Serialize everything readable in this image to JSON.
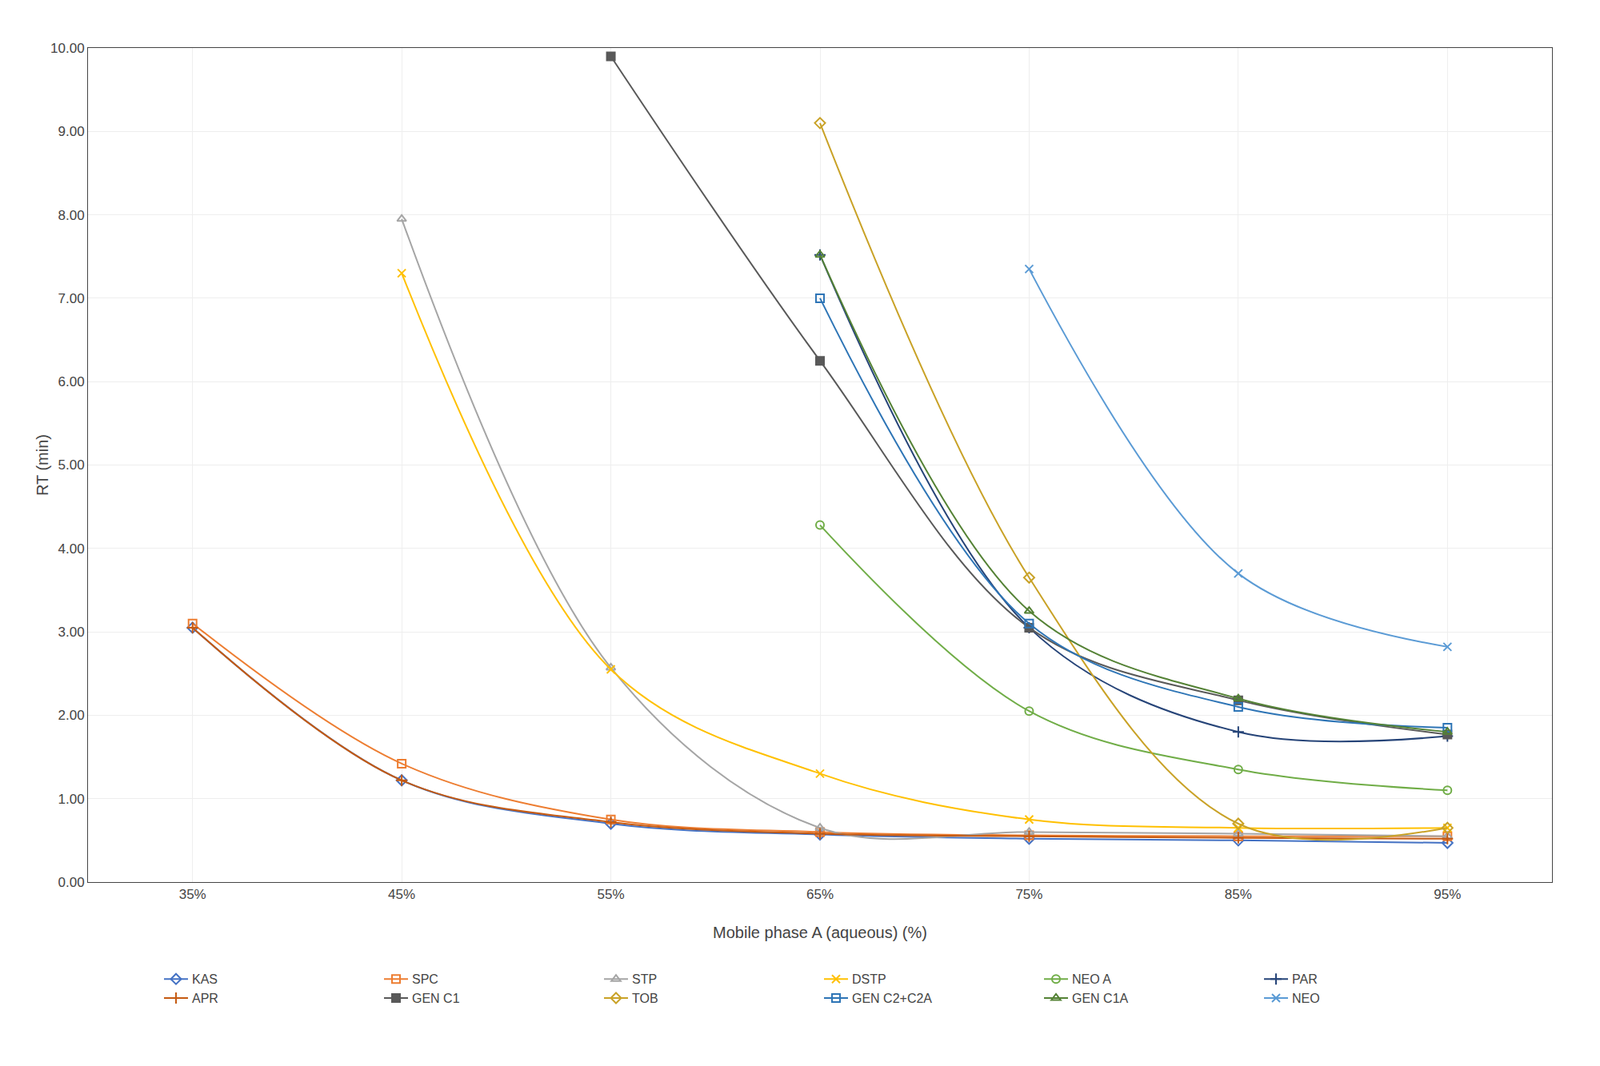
{
  "chart_data": {
    "type": "line",
    "xlabel": "Mobile phase A (aqueous) (%)",
    "ylabel": "RT (min)",
    "xlim": [
      30,
      100
    ],
    "xticks": [
      {
        "value": 35,
        "label": "35%"
      },
      {
        "value": 45,
        "label": "45%"
      },
      {
        "value": 55,
        "label": "55%"
      },
      {
        "value": 65,
        "label": "65%"
      },
      {
        "value": 75,
        "label": "75%"
      },
      {
        "value": 85,
        "label": "85%"
      },
      {
        "value": 95,
        "label": "95%"
      }
    ],
    "ylim": [
      0.0,
      10.0
    ],
    "yticks": [
      {
        "value": 0,
        "label": "0.00"
      },
      {
        "value": 1,
        "label": "1.00"
      },
      {
        "value": 2,
        "label": "2.00"
      },
      {
        "value": 3,
        "label": "3.00"
      },
      {
        "value": 4,
        "label": "4.00"
      },
      {
        "value": 5,
        "label": "5.00"
      },
      {
        "value": 6,
        "label": "6.00"
      },
      {
        "value": 7,
        "label": "7.00"
      },
      {
        "value": 8,
        "label": "8.00"
      },
      {
        "value": 9,
        "label": "9.00"
      },
      {
        "value": 10,
        "label": "10.00"
      }
    ],
    "grid": true,
    "legend": "bottom",
    "series": [
      {
        "name": "KAS",
        "color": "#4472C4",
        "marker": "diamond-open",
        "x": [
          35,
          45,
          55,
          65,
          75,
          85,
          95
        ],
        "values": [
          3.05,
          1.22,
          0.7,
          0.57,
          0.52,
          0.5,
          0.47
        ]
      },
      {
        "name": "SPC",
        "color": "#ED7D31",
        "marker": "square-open",
        "x": [
          35,
          45,
          55,
          65,
          75,
          85,
          95
        ],
        "values": [
          3.1,
          1.42,
          0.75,
          0.6,
          0.56,
          0.55,
          0.55
        ]
      },
      {
        "name": "STP",
        "color": "#A5A5A5",
        "marker": "triangle-up-open",
        "x": [
          45,
          55,
          65,
          75,
          85,
          95
        ],
        "values": [
          7.95,
          2.57,
          0.65,
          0.6,
          0.58,
          0.55
        ]
      },
      {
        "name": "DSTP",
        "color": "#FFC000",
        "marker": "x-thin",
        "x": [
          45,
          55,
          65,
          75,
          85,
          95
        ],
        "values": [
          7.3,
          2.55,
          1.3,
          0.75,
          0.65,
          0.65
        ]
      },
      {
        "name": "NEO A",
        "color": "#70AD47",
        "marker": "circle-open",
        "x": [
          65,
          75,
          85,
          95
        ],
        "values": [
          4.28,
          2.05,
          1.35,
          1.1
        ]
      },
      {
        "name": "PAR",
        "color": "#264478",
        "marker": "cross-thin",
        "x": [
          65,
          75,
          85,
          95
        ],
        "values": [
          7.52,
          3.05,
          1.8,
          1.75
        ]
      },
      {
        "name": "APR",
        "color": "#C55A11",
        "marker": "cross-thin",
        "x": [
          35,
          45,
          55,
          65,
          75,
          85,
          95
        ],
        "values": [
          3.05,
          1.22,
          0.72,
          0.58,
          0.55,
          0.53,
          0.52
        ]
      },
      {
        "name": "GEN C1",
        "color": "#595959",
        "marker": "square",
        "x": [
          55,
          65,
          75,
          85,
          95
        ],
        "values": [
          9.9,
          6.25,
          3.05,
          2.18,
          1.77
        ]
      },
      {
        "name": "TOB",
        "color": "#C9A227",
        "marker": "diamond-open",
        "x": [
          65,
          75,
          85,
          95
        ],
        "values": [
          9.1,
          3.65,
          0.7,
          0.65
        ]
      },
      {
        "name": "GEN C2+C2A",
        "color": "#2E75B6",
        "marker": "square-open",
        "x": [
          65,
          75,
          85,
          95
        ],
        "values": [
          7.0,
          3.1,
          2.1,
          1.85
        ]
      },
      {
        "name": "GEN C1A",
        "color": "#548235",
        "marker": "triangle-up-open",
        "x": [
          65,
          75,
          85,
          95
        ],
        "values": [
          7.52,
          3.25,
          2.2,
          1.8
        ]
      },
      {
        "name": "NEO",
        "color": "#5B9BD5",
        "marker": "x-thin",
        "x": [
          75,
          85,
          95
        ],
        "values": [
          7.35,
          3.7,
          2.82
        ]
      }
    ]
  }
}
